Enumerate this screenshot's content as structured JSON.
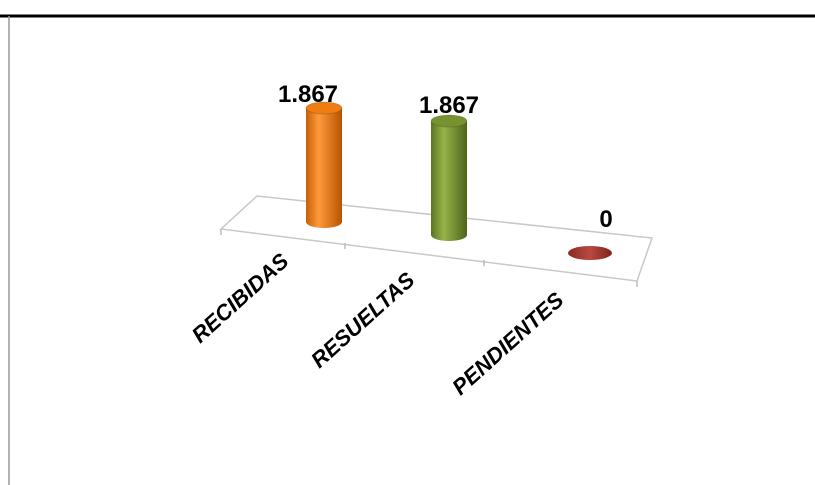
{
  "chart_data": {
    "type": "bar",
    "style": "3d-cylinder",
    "categories": [
      "RECIBIDAS",
      "RESUELTAS",
      "PENDIENTES"
    ],
    "values": [
      1867,
      1867,
      0
    ],
    "value_labels": [
      "1.867",
      "1.867",
      "0"
    ],
    "colors": [
      "#ef7d12",
      "#77922f",
      "#a63a32"
    ],
    "title": "",
    "xlabel": "",
    "ylabel": "",
    "ylim": [
      0,
      1867
    ],
    "grid": false,
    "legend": "none"
  }
}
